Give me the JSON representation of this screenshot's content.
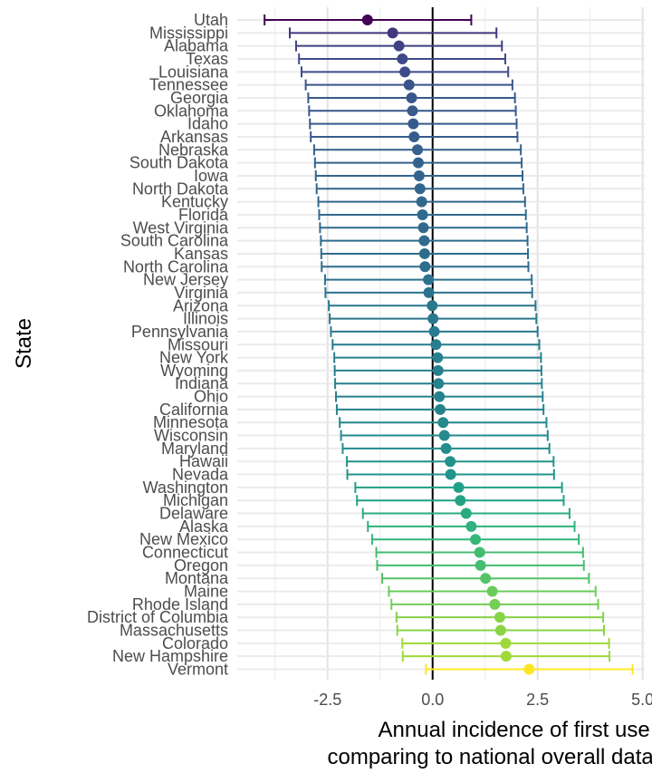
{
  "chart_data": {
    "type": "scatter",
    "subtype": "point-range (forest plot)",
    "title": "",
    "xlabel": "Annual incidence of first use of marijuana\ncomparing to national overall data, adjusting for age",
    "ylabel": "State",
    "xlim": [
      -4.65,
      5.05
    ],
    "xticks": [
      -2.5,
      0.0,
      2.5,
      5.0
    ],
    "xtick_labels": [
      "-2.5",
      "0.0",
      "2.5",
      "5.0"
    ],
    "reference_line_x": 0,
    "grid": true,
    "legend": "none",
    "color_scale": "viridis (high estimate = dark purple, low estimate = yellow)",
    "series": [
      {
        "points": [
          {
            "state": "Utah",
            "estimate": -1.55,
            "lower": -4.0,
            "upper": 0.92
          },
          {
            "state": "Mississippi",
            "estimate": -0.95,
            "lower": -3.4,
            "upper": 1.52
          },
          {
            "state": "Alabama",
            "estimate": -0.8,
            "lower": -3.25,
            "upper": 1.65
          },
          {
            "state": "Texas",
            "estimate": -0.72,
            "lower": -3.18,
            "upper": 1.73
          },
          {
            "state": "Louisiana",
            "estimate": -0.66,
            "lower": -3.12,
            "upper": 1.8
          },
          {
            "state": "Tennessee",
            "estimate": -0.56,
            "lower": -3.02,
            "upper": 1.9
          },
          {
            "state": "Georgia",
            "estimate": -0.5,
            "lower": -2.96,
            "upper": 1.96
          },
          {
            "state": "Oklahoma",
            "estimate": -0.48,
            "lower": -2.94,
            "upper": 1.98
          },
          {
            "state": "Idaho",
            "estimate": -0.46,
            "lower": -2.92,
            "upper": 2.0
          },
          {
            "state": "Arkansas",
            "estimate": -0.44,
            "lower": -2.9,
            "upper": 2.02
          },
          {
            "state": "Nebraska",
            "estimate": -0.36,
            "lower": -2.82,
            "upper": 2.1
          },
          {
            "state": "South Dakota",
            "estimate": -0.34,
            "lower": -2.8,
            "upper": 2.12
          },
          {
            "state": "Iowa",
            "estimate": -0.32,
            "lower": -2.78,
            "upper": 2.14
          },
          {
            "state": "North Dakota",
            "estimate": -0.3,
            "lower": -2.76,
            "upper": 2.16
          },
          {
            "state": "Kentucky",
            "estimate": -0.26,
            "lower": -2.72,
            "upper": 2.2
          },
          {
            "state": "Florida",
            "estimate": -0.24,
            "lower": -2.7,
            "upper": 2.22
          },
          {
            "state": "West Virginia",
            "estimate": -0.22,
            "lower": -2.68,
            "upper": 2.24
          },
          {
            "state": "South Carolina",
            "estimate": -0.2,
            "lower": -2.66,
            "upper": 2.26
          },
          {
            "state": "Kansas",
            "estimate": -0.19,
            "lower": -2.65,
            "upper": 2.27
          },
          {
            "state": "North Carolina",
            "estimate": -0.18,
            "lower": -2.64,
            "upper": 2.28
          },
          {
            "state": "New Jersey",
            "estimate": -0.1,
            "lower": -2.56,
            "upper": 2.36
          },
          {
            "state": "Virginia",
            "estimate": -0.09,
            "lower": -2.55,
            "upper": 2.37
          },
          {
            "state": "Arizona",
            "estimate": -0.01,
            "lower": -2.47,
            "upper": 2.45
          },
          {
            "state": "Illinois",
            "estimate": 0.01,
            "lower": -2.45,
            "upper": 2.47
          },
          {
            "state": "Pennsylvania",
            "estimate": 0.04,
            "lower": -2.42,
            "upper": 2.5
          },
          {
            "state": "Missouri",
            "estimate": 0.08,
            "lower": -2.38,
            "upper": 2.54
          },
          {
            "state": "New York",
            "estimate": 0.12,
            "lower": -2.34,
            "upper": 2.58
          },
          {
            "state": "Wyoming",
            "estimate": 0.13,
            "lower": -2.33,
            "upper": 2.59
          },
          {
            "state": "Indiana",
            "estimate": 0.14,
            "lower": -2.32,
            "upper": 2.6
          },
          {
            "state": "Ohio",
            "estimate": 0.16,
            "lower": -2.3,
            "upper": 2.62
          },
          {
            "state": "California",
            "estimate": 0.18,
            "lower": -2.28,
            "upper": 2.64
          },
          {
            "state": "Minnesota",
            "estimate": 0.25,
            "lower": -2.21,
            "upper": 2.71
          },
          {
            "state": "Wisconsin",
            "estimate": 0.28,
            "lower": -2.18,
            "upper": 2.74
          },
          {
            "state": "Maryland",
            "estimate": 0.32,
            "lower": -2.14,
            "upper": 2.78
          },
          {
            "state": "Hawaii",
            "estimate": 0.42,
            "lower": -2.04,
            "upper": 2.88
          },
          {
            "state": "Nevada",
            "estimate": 0.43,
            "lower": -2.03,
            "upper": 2.89
          },
          {
            "state": "Washington",
            "estimate": 0.62,
            "lower": -1.84,
            "upper": 3.08
          },
          {
            "state": "Michigan",
            "estimate": 0.66,
            "lower": -1.8,
            "upper": 3.12
          },
          {
            "state": "Delaware",
            "estimate": 0.8,
            "lower": -1.66,
            "upper": 3.26
          },
          {
            "state": "Alaska",
            "estimate": 0.92,
            "lower": -1.54,
            "upper": 3.38
          },
          {
            "state": "New Mexico",
            "estimate": 1.02,
            "lower": -1.44,
            "upper": 3.48
          },
          {
            "state": "Connecticut",
            "estimate": 1.12,
            "lower": -1.34,
            "upper": 3.58
          },
          {
            "state": "Oregon",
            "estimate": 1.14,
            "lower": -1.32,
            "upper": 3.6
          },
          {
            "state": "Montana",
            "estimate": 1.26,
            "lower": -1.2,
            "upper": 3.72
          },
          {
            "state": "Maine",
            "estimate": 1.42,
            "lower": -1.04,
            "upper": 3.88
          },
          {
            "state": "Rhode Island",
            "estimate": 1.48,
            "lower": -0.98,
            "upper": 3.94
          },
          {
            "state": "District of Columbia",
            "estimate": 1.6,
            "lower": -0.86,
            "upper": 4.06
          },
          {
            "state": "Massachusetts",
            "estimate": 1.62,
            "lower": -0.84,
            "upper": 4.08
          },
          {
            "state": "Colorado",
            "estimate": 1.74,
            "lower": -0.72,
            "upper": 4.2
          },
          {
            "state": "New Hampshire",
            "estimate": 1.75,
            "lower": -0.71,
            "upper": 4.21
          },
          {
            "state": "Vermont",
            "estimate": 2.3,
            "lower": -0.16,
            "upper": 4.76
          }
        ]
      }
    ]
  }
}
